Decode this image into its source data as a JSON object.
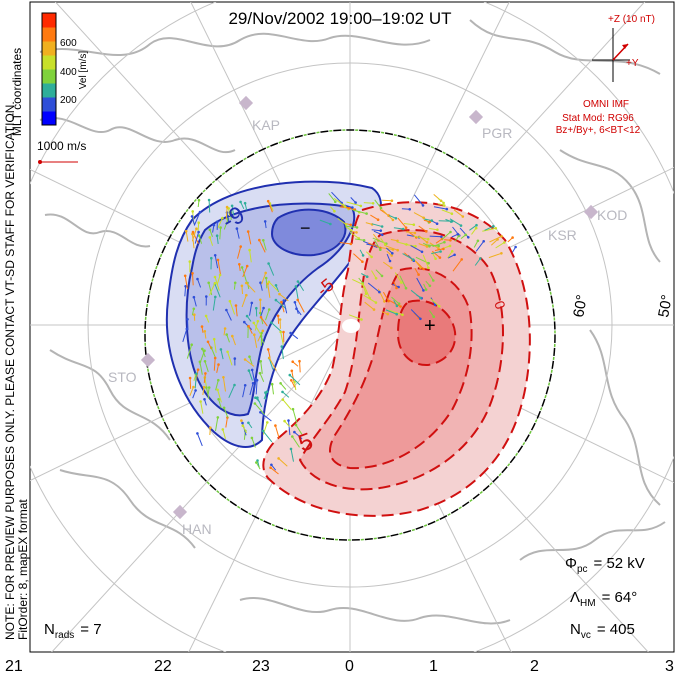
{
  "header": {
    "title": "29/Nov/2002 19:00–19:02 UT",
    "coords": "MLT coordinates"
  },
  "colorbar": {
    "label": "Vel [m/s]",
    "ticks": [
      "600",
      "400",
      "200"
    ],
    "colors": [
      "#0000ff",
      "#2f4fd8",
      "#2fae9a",
      "#7fd23c",
      "#c8e02a",
      "#f0b020",
      "#ff7a10",
      "#ff2a00"
    ]
  },
  "scale": {
    "label": "1000 m/s"
  },
  "imf": {
    "z_label": "+Z (10 nT)",
    "y_label": "+Y",
    "source": "OMNI IMF",
    "model": "Stat Mod: RG96",
    "condition": "Bz+/By+, 6<BT<12"
  },
  "stations": [
    {
      "id": "kap",
      "label": "KAP"
    },
    {
      "id": "pgr",
      "label": "PGR"
    },
    {
      "id": "kod",
      "label": "KOD"
    },
    {
      "id": "ksr",
      "label": "KSR"
    },
    {
      "id": "sto",
      "label": "STO"
    },
    {
      "id": "han",
      "label": "HAN"
    }
  ],
  "latitude_labels": [
    "60°",
    "50°"
  ],
  "contour_labels": [
    "-9",
    "-5",
    "0",
    "5"
  ],
  "mlt_axis": [
    "21",
    "22",
    "23",
    "0",
    "1",
    "2",
    "3"
  ],
  "stats": {
    "phi_pc_sym": "Φ",
    "phi_pc_sub": "pc",
    "phi_pc_value": "= 52 kV",
    "lambda_sym": "Λ",
    "lambda_sub": "HM",
    "lambda_value": "= 64°",
    "nvc_sym": "N",
    "nvc_sub": "vc",
    "nvc_value": "= 405",
    "nrads_sym": "N",
    "nrads_sub": "rads",
    "nrads_value": "= 7"
  },
  "side_note": {
    "line1": "NOTE: FOR PREVIEW PURPOSES ONLY. PLEASE CONTACT VT-SD STAFF FOR VERIFICATION.",
    "line2": "FitOrder: 8,  mapEX format"
  },
  "colors": {
    "negative_cell": "#2030b0",
    "positive_cell": "#d01010",
    "negative_fill": "#d8dcf2",
    "positive_fill": "#f6c8c8",
    "grid": "#bdbdbd",
    "coast": "#b4b4b4"
  }
}
